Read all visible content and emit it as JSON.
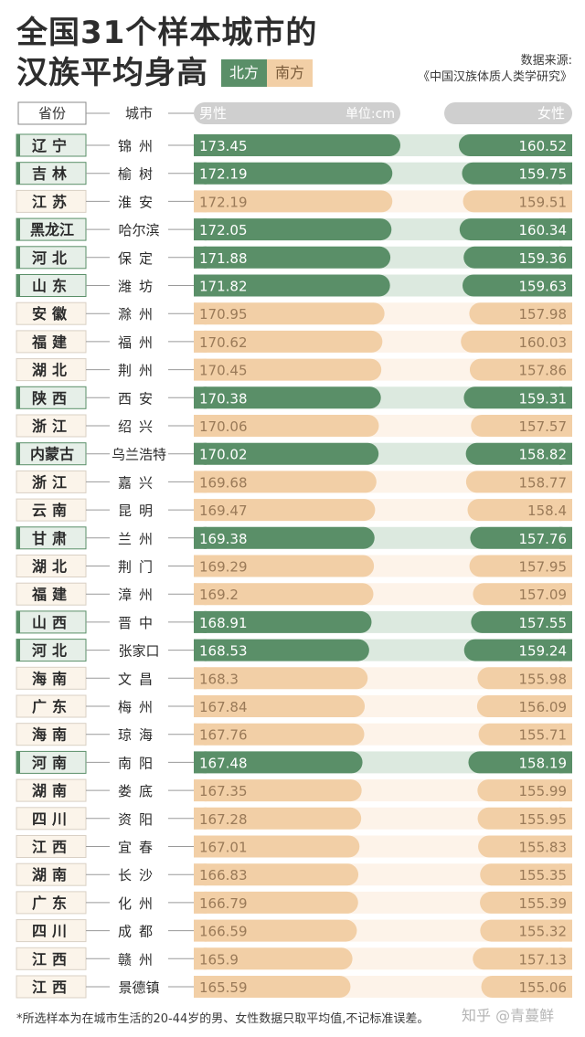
{
  "title": {
    "line1": "全国31个样本城市的",
    "line2": "汉族平均身高"
  },
  "legend": {
    "north": "北方",
    "south": "南方"
  },
  "source": {
    "label": "数据来源:",
    "name": "《中国汉族体质人类学研究》"
  },
  "colors": {
    "north_bar": "#5a8f68",
    "north_track": "#dce9df",
    "north_label_bg": "#e6efe8",
    "south_bar": "#f2cfa6",
    "south_track": "#fdf3e9",
    "south_label_bg": "#fbf4ea",
    "header_bar": "#cfcfcf"
  },
  "chart_data": {
    "type": "bar",
    "unit_label": "单位:cm",
    "headers": {
      "province": "省份",
      "city": "城市",
      "male": "男性",
      "female": "女性"
    },
    "categories": [
      "锦州",
      "榆树",
      "淮安",
      "哈尔滨",
      "保定",
      "潍坊",
      "滁州",
      "福州",
      "荆州",
      "西安",
      "绍兴",
      "乌兰浩特",
      "嘉兴",
      "昆明",
      "兰州",
      "荆门",
      "漳州",
      "晋中",
      "张家口",
      "文昌",
      "梅州",
      "琼海",
      "南阳",
      "娄底",
      "资阳",
      "宜春",
      "长沙",
      "化州",
      "成都",
      "赣州",
      "景德镇"
    ],
    "provinces": [
      "辽宁",
      "吉林",
      "江苏",
      "黑龙江",
      "河北",
      "山东",
      "安徽",
      "福建",
      "湖北",
      "陕西",
      "浙江",
      "内蒙古",
      "浙江",
      "云南",
      "甘肃",
      "湖北",
      "福建",
      "山西",
      "河北",
      "海南",
      "广东",
      "海南",
      "河南",
      "湖南",
      "四川",
      "江西",
      "湖南",
      "广东",
      "四川",
      "江西",
      "江西"
    ],
    "region": [
      "北方",
      "北方",
      "南方",
      "北方",
      "北方",
      "北方",
      "南方",
      "南方",
      "南方",
      "北方",
      "南方",
      "北方",
      "南方",
      "南方",
      "北方",
      "南方",
      "南方",
      "北方",
      "北方",
      "南方",
      "南方",
      "南方",
      "北方",
      "南方",
      "南方",
      "南方",
      "南方",
      "南方",
      "南方",
      "南方",
      "南方"
    ],
    "series": [
      {
        "name": "男性",
        "values": [
          173.45,
          172.19,
          172.19,
          172.05,
          171.88,
          171.82,
          170.95,
          170.62,
          170.45,
          170.38,
          170.06,
          170.02,
          169.68,
          169.47,
          169.38,
          169.29,
          169.2,
          168.91,
          168.53,
          168.3,
          167.84,
          167.76,
          167.48,
          167.35,
          167.28,
          167.01,
          166.83,
          166.79,
          166.59,
          165.9,
          165.59
        ]
      },
      {
        "name": "女性",
        "values": [
          160.52,
          159.75,
          159.51,
          160.34,
          159.36,
          159.63,
          157.98,
          160.03,
          157.86,
          159.31,
          157.57,
          158.82,
          158.77,
          158.4,
          157.76,
          157.95,
          157.09,
          157.55,
          159.24,
          155.98,
          156.09,
          155.71,
          158.19,
          155.99,
          155.95,
          155.83,
          155.35,
          155.39,
          155.32,
          157.13,
          155.06
        ]
      }
    ]
  },
  "footnote": "*所选样本为在城市生活的20-44岁的男、女性数据只取平均值,不记标准误差。",
  "watermark": "知乎 @青蔓鲜"
}
